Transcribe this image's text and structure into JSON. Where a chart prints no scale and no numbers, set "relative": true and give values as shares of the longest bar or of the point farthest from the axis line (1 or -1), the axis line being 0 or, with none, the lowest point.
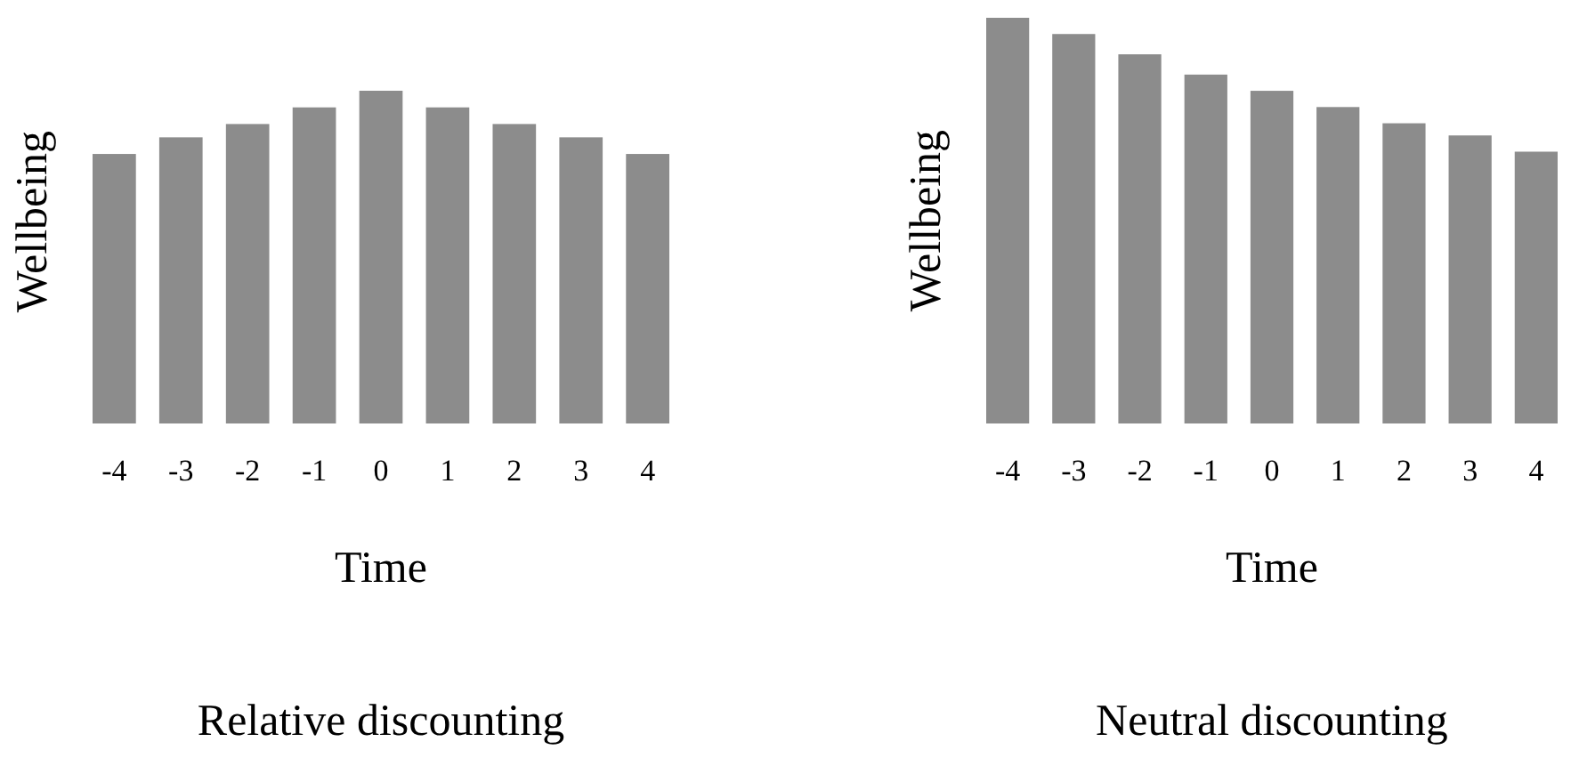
{
  "chart_data": [
    {
      "type": "bar",
      "title": "Relative discounting",
      "xlabel": "Time",
      "ylabel": "Wellbeing",
      "relative": true,
      "categories": [
        "-4",
        "-3",
        "-2",
        "-1",
        "0",
        "1",
        "2",
        "3",
        "4"
      ],
      "color": "#8c8c8c",
      "values": [
        0.81,
        0.86,
        0.9,
        0.95,
        1,
        0.95,
        0.9,
        0.86,
        0.81
      ]
    },
    {
      "type": "bar",
      "title": "Neutral discounting",
      "xlabel": "Time",
      "ylabel": "Wellbeing",
      "relative": true,
      "categories": [
        "-4",
        "-3",
        "-2",
        "-1",
        "0",
        "1",
        "2",
        "3",
        "4"
      ],
      "color": "#8c8c8c",
      "values": [
        1,
        0.96,
        0.91,
        0.86,
        0.82,
        0.78,
        0.74,
        0.71,
        0.67
      ]
    }
  ]
}
